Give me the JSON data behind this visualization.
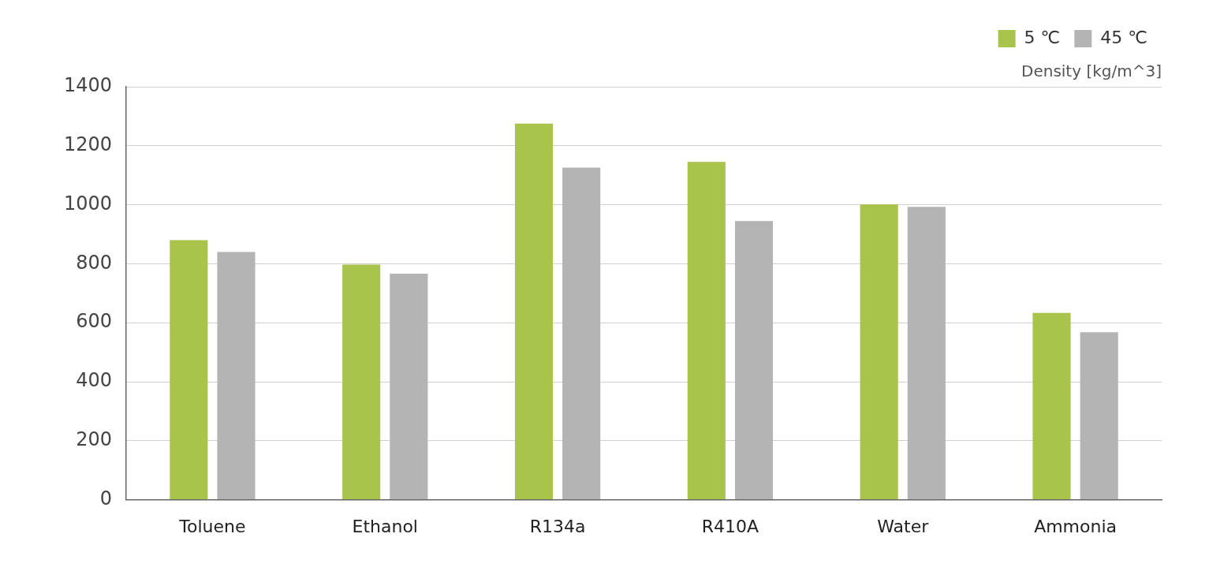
{
  "chart_data": {
    "type": "bar",
    "ylabel": "Density [kg/m^3]",
    "categories": [
      "Toluene",
      "Ethanol",
      "R134a",
      "R410A",
      "Water",
      "Ammonia"
    ],
    "series": [
      {
        "name": "5 ℃",
        "color": "#a9c44a",
        "values": [
          880,
          797,
          1275,
          1145,
          1001,
          633
        ]
      },
      {
        "name": "45 ℃",
        "color": "#b4b4b4",
        "values": [
          840,
          766,
          1126,
          945,
          993,
          568
        ]
      }
    ],
    "ylim": [
      0,
      1400
    ],
    "yticks": [
      0,
      200,
      400,
      600,
      800,
      1000,
      1200,
      1400
    ],
    "grid": "y",
    "legend": "top right"
  }
}
